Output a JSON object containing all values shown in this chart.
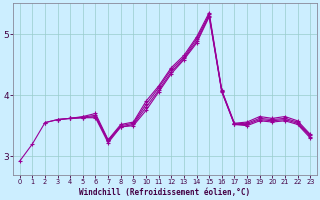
{
  "xlabel": "Windchill (Refroidissement éolien,°C)",
  "background_color": "#cceeff",
  "grid_color": "#99cccc",
  "line_color": "#990099",
  "x_ticks": [
    0,
    1,
    2,
    3,
    4,
    5,
    6,
    7,
    8,
    9,
    10,
    11,
    12,
    13,
    14,
    15,
    16,
    17,
    18,
    19,
    20,
    21,
    22,
    23
  ],
  "y_ticks": [
    3,
    4,
    5
  ],
  "ylim": [
    2.7,
    5.5
  ],
  "xlim": [
    -0.5,
    23.5
  ],
  "series": [
    [
      2.92,
      3.2,
      3.55,
      3.6,
      3.62,
      3.63,
      3.63,
      3.22,
      3.48,
      3.5,
      3.75,
      4.05,
      4.35,
      4.58,
      4.85,
      5.28,
      4.05,
      3.52,
      3.5,
      3.58,
      3.56,
      3.58,
      3.52,
      3.3
    ],
    [
      null,
      null,
      3.55,
      3.6,
      3.62,
      3.63,
      3.65,
      3.25,
      3.48,
      3.52,
      3.8,
      4.08,
      4.38,
      4.6,
      4.88,
      5.3,
      4.06,
      3.52,
      3.52,
      3.6,
      3.58,
      3.6,
      3.54,
      3.32
    ],
    [
      null,
      null,
      null,
      3.6,
      3.62,
      3.64,
      3.67,
      3.26,
      3.5,
      3.54,
      3.85,
      4.12,
      4.42,
      4.62,
      4.92,
      5.32,
      4.07,
      3.53,
      3.54,
      3.62,
      3.6,
      3.62,
      3.56,
      3.34
    ],
    [
      null,
      null,
      null,
      null,
      3.62,
      3.65,
      3.7,
      3.27,
      3.52,
      3.56,
      3.9,
      4.15,
      4.45,
      4.65,
      4.95,
      5.35,
      4.08,
      3.54,
      3.56,
      3.65,
      3.62,
      3.65,
      3.58,
      3.36
    ]
  ]
}
